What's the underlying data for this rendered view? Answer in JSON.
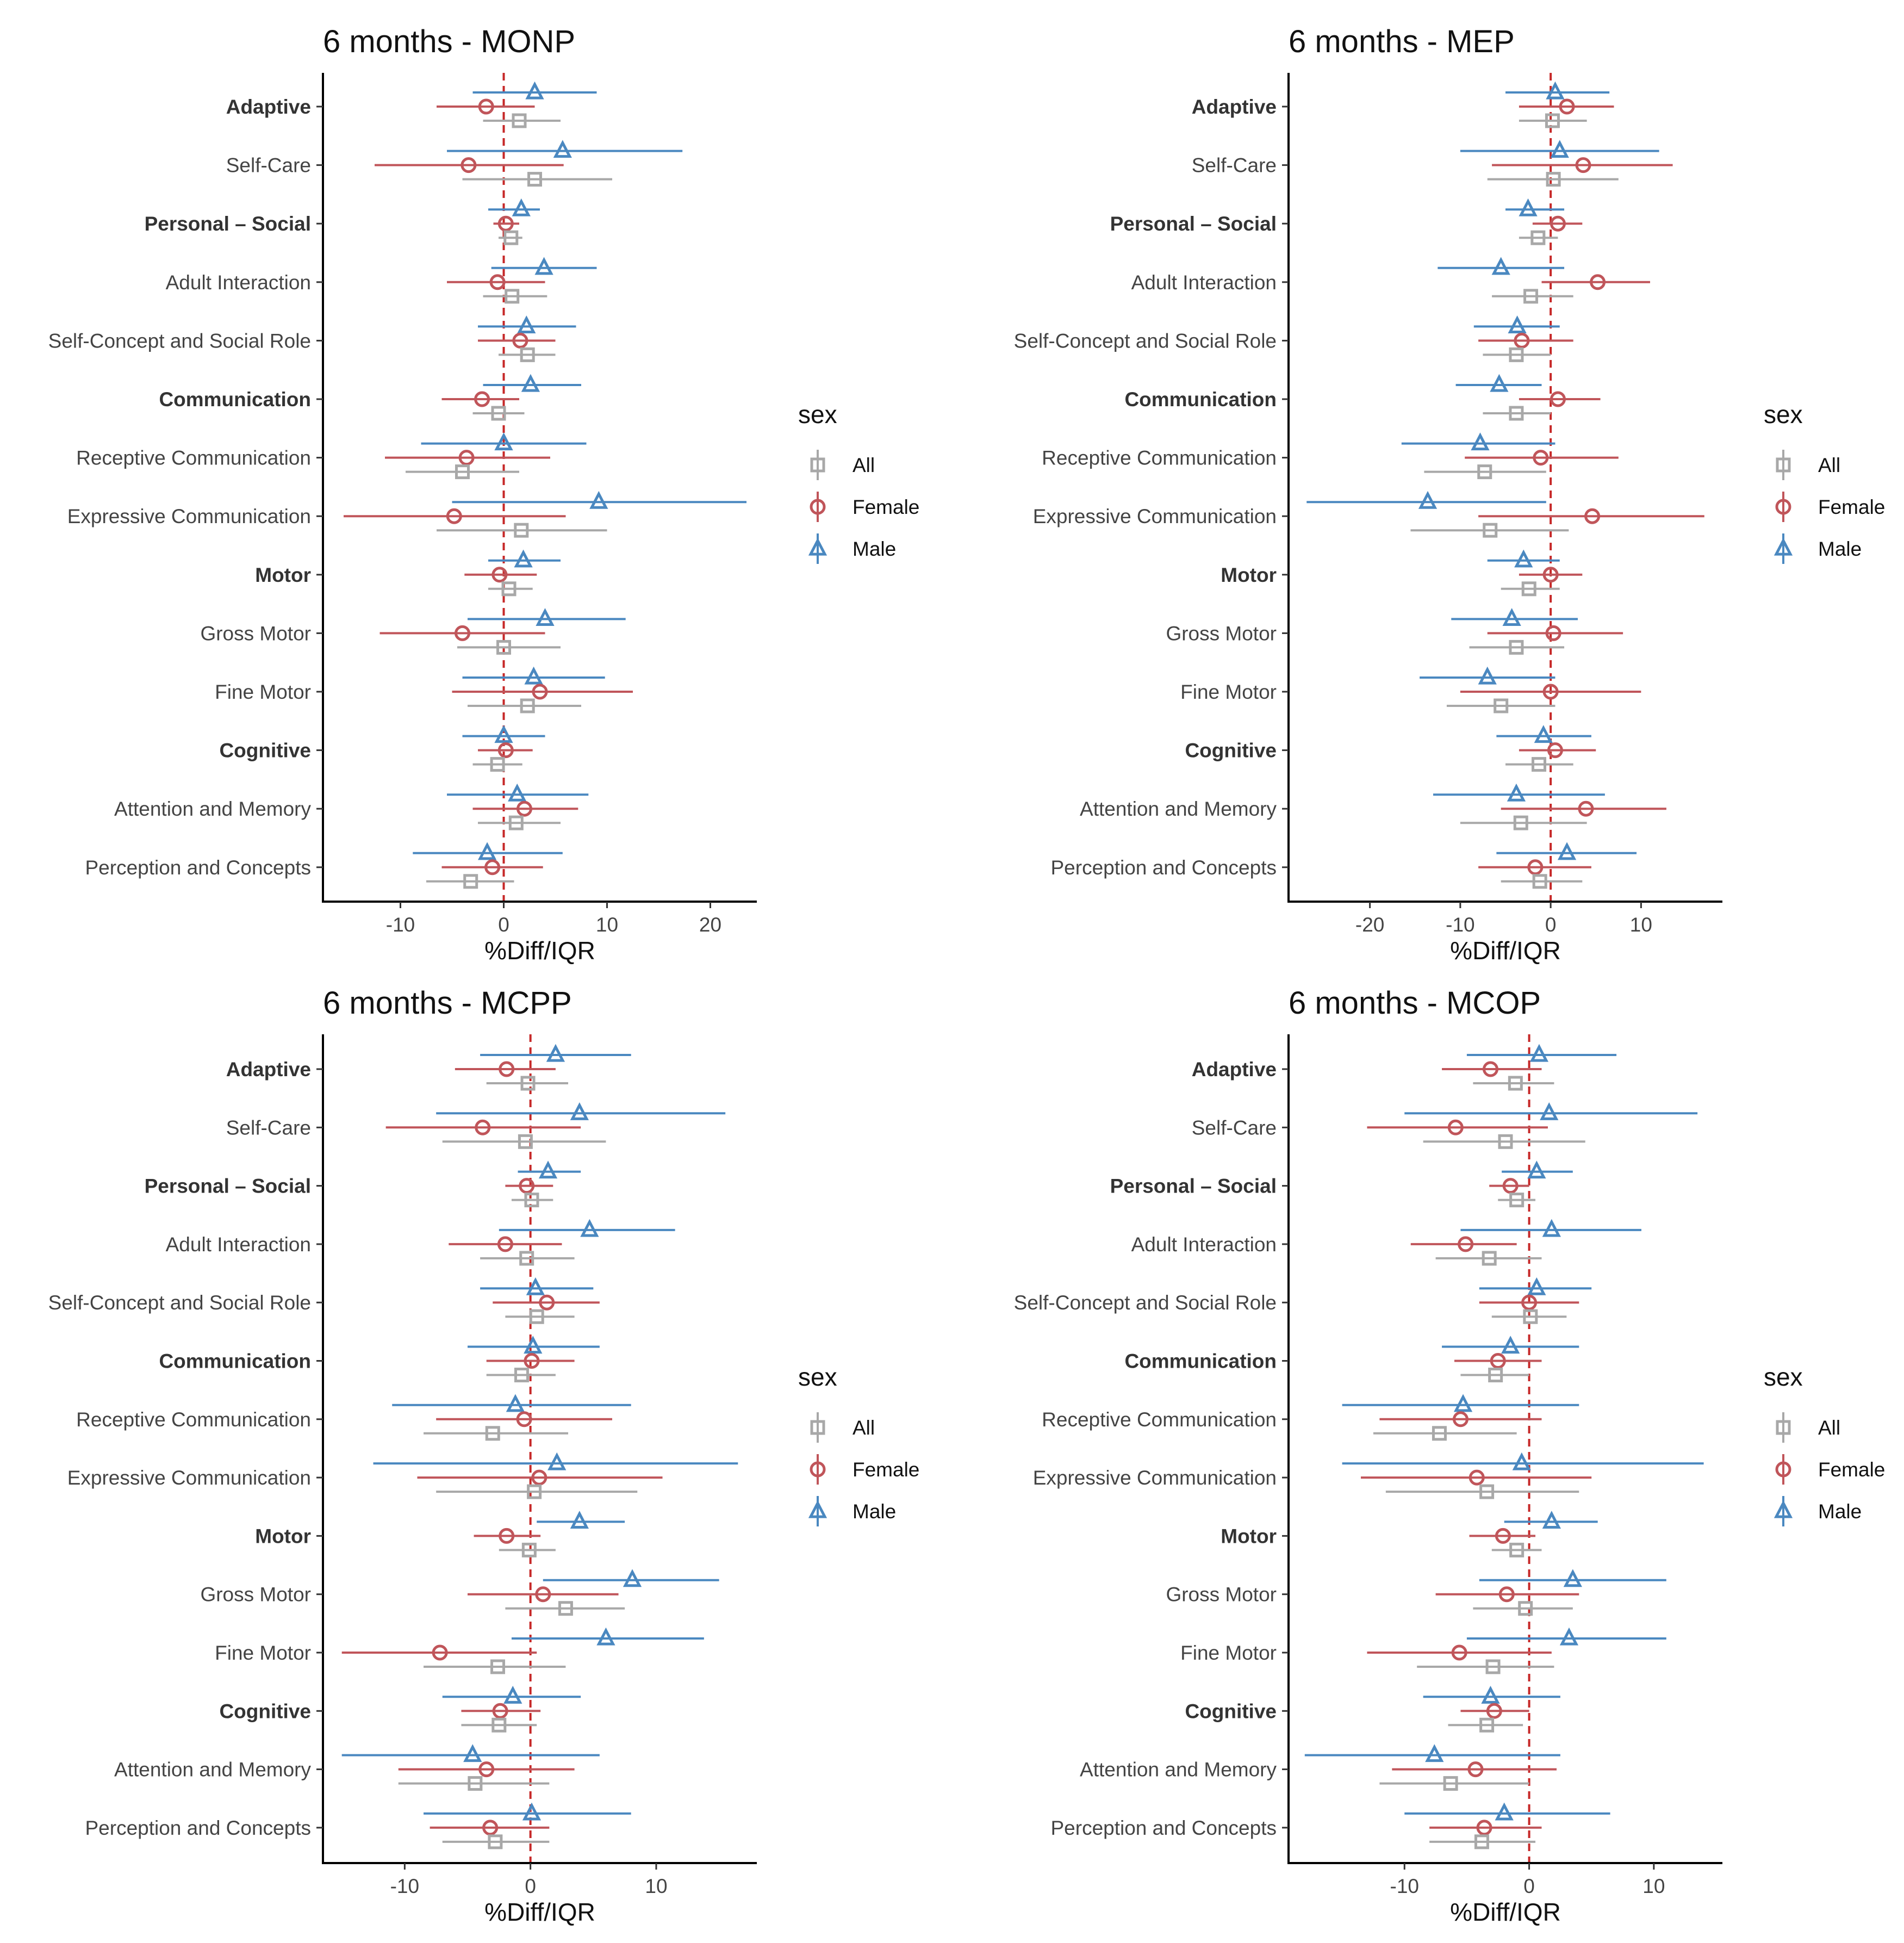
{
  "chart_data": [
    {
      "type": "forest",
      "title": "6 months - MONP",
      "xlabel": "%Diff/IQR",
      "xlim": [
        -17.5,
        24.5
      ],
      "xticks": [
        -10,
        0,
        10,
        20
      ],
      "xtick_labels": [
        "-10",
        "0",
        "10",
        "20"
      ],
      "reference_line": 0,
      "categories": [
        {
          "label": "Adaptive",
          "bold": true
        },
        {
          "label": "Self-Care",
          "bold": false
        },
        {
          "label": "Personal – Social",
          "bold": true
        },
        {
          "label": "Adult Interaction",
          "bold": false
        },
        {
          "label": "Self-Concept and Social Role",
          "bold": false
        },
        {
          "label": "Communication",
          "bold": true
        },
        {
          "label": "Receptive Communication",
          "bold": false
        },
        {
          "label": "Expressive Communication",
          "bold": false
        },
        {
          "label": "Motor",
          "bold": true
        },
        {
          "label": "Gross Motor",
          "bold": false
        },
        {
          "label": "Fine Motor",
          "bold": false
        },
        {
          "label": "Cognitive",
          "bold": true
        },
        {
          "label": "Attention and Memory",
          "bold": false
        },
        {
          "label": "Perception and Concepts",
          "bold": false
        }
      ],
      "series": [
        {
          "name": "Male",
          "est": [
            3.0,
            5.7,
            1.7,
            3.9,
            2.2,
            2.6,
            0.0,
            9.2,
            1.9,
            4.0,
            2.9,
            0.0,
            1.3,
            -1.6
          ],
          "lo": [
            -3.0,
            -5.5,
            -1.5,
            -1.2,
            -2.5,
            -2.0,
            -8.0,
            -5.0,
            -1.5,
            -3.5,
            -4.0,
            -4.0,
            -5.5,
            -8.8
          ],
          "hi": [
            9.0,
            17.3,
            3.5,
            9.0,
            7.0,
            7.5,
            8.0,
            23.5,
            5.5,
            11.8,
            9.8,
            4.0,
            8.2,
            5.7
          ]
        },
        {
          "name": "Female",
          "est": [
            -1.7,
            -3.4,
            0.2,
            -0.6,
            1.6,
            -2.1,
            -3.6,
            -4.8,
            -0.4,
            -4.0,
            3.5,
            0.2,
            2.0,
            -1.1
          ],
          "lo": [
            -6.5,
            -12.5,
            -1.0,
            -5.5,
            -2.5,
            -6.0,
            -11.5,
            -15.5,
            -3.8,
            -12.0,
            -5.0,
            -2.5,
            -3.0,
            -6.0
          ],
          "hi": [
            3.0,
            5.8,
            1.5,
            4.0,
            5.0,
            1.5,
            4.5,
            6.0,
            3.2,
            4.0,
            12.5,
            2.8,
            7.2,
            3.8
          ]
        },
        {
          "name": "All",
          "est": [
            1.5,
            3.0,
            0.7,
            0.8,
            2.3,
            -0.5,
            -4.0,
            1.7,
            0.5,
            0.0,
            2.3,
            -0.6,
            1.2,
            -3.2
          ],
          "lo": [
            -2.0,
            -4.0,
            -0.5,
            -2.0,
            -0.5,
            -3.0,
            -9.5,
            -6.5,
            -1.5,
            -4.5,
            -3.5,
            -3.0,
            -2.5,
            -7.5
          ],
          "hi": [
            5.5,
            10.5,
            1.8,
            4.2,
            5.0,
            2.0,
            1.5,
            10.0,
            2.8,
            5.5,
            7.5,
            1.8,
            5.5,
            1.0
          ]
        }
      ]
    },
    {
      "type": "forest",
      "title": "6 months - MEP",
      "xlabel": "%Diff/IQR",
      "xlim": [
        -29,
        19
      ],
      "xticks": [
        -20,
        -10,
        0,
        10
      ],
      "xtick_labels": [
        "-20",
        "-10",
        "0",
        "10"
      ],
      "reference_line": 0,
      "categories": [
        {
          "label": "Adaptive",
          "bold": true
        },
        {
          "label": "Self-Care",
          "bold": false
        },
        {
          "label": "Personal – Social",
          "bold": true
        },
        {
          "label": "Adult Interaction",
          "bold": false
        },
        {
          "label": "Self-Concept and Social Role",
          "bold": false
        },
        {
          "label": "Communication",
          "bold": true
        },
        {
          "label": "Receptive Communication",
          "bold": false
        },
        {
          "label": "Expressive Communication",
          "bold": false
        },
        {
          "label": "Motor",
          "bold": true
        },
        {
          "label": "Gross Motor",
          "bold": false
        },
        {
          "label": "Fine Motor",
          "bold": false
        },
        {
          "label": "Cognitive",
          "bold": true
        },
        {
          "label": "Attention and Memory",
          "bold": false
        },
        {
          "label": "Perception and Concepts",
          "bold": false
        }
      ],
      "series": [
        {
          "name": "Male",
          "est": [
            0.5,
            1.0,
            -2.5,
            -5.5,
            -3.7,
            -5.7,
            -7.8,
            -13.6,
            -3.0,
            -4.3,
            -7.0,
            -0.8,
            -3.8,
            1.8
          ],
          "lo": [
            -5.0,
            -10.0,
            -5.0,
            -12.5,
            -8.5,
            -10.5,
            -16.5,
            -27.0,
            -7.0,
            -11.0,
            -14.5,
            -6.0,
            -13.0,
            -6.0
          ],
          "hi": [
            6.5,
            12.0,
            1.5,
            1.5,
            1.0,
            -1.0,
            0.5,
            -0.5,
            1.0,
            3.0,
            0.5,
            4.5,
            6.0,
            9.5
          ]
        },
        {
          "name": "Female",
          "est": [
            1.8,
            3.6,
            0.8,
            5.2,
            -3.2,
            0.8,
            -1.1,
            4.6,
            0.0,
            0.3,
            0.0,
            0.5,
            3.9,
            -1.7
          ],
          "lo": [
            -3.5,
            -6.5,
            -2.0,
            -1.0,
            -8.0,
            -3.5,
            -9.5,
            -8.0,
            -3.5,
            -7.0,
            -10.0,
            -3.5,
            -5.5,
            -8.0
          ],
          "hi": [
            7.0,
            13.5,
            3.5,
            11.0,
            2.5,
            5.5,
            7.5,
            17.0,
            3.5,
            8.0,
            10.0,
            5.0,
            12.8,
            4.5
          ]
        },
        {
          "name": "All",
          "est": [
            0.2,
            0.3,
            -1.4,
            -2.2,
            -3.8,
            -3.8,
            -7.3,
            -6.7,
            -2.4,
            -3.8,
            -5.5,
            -1.3,
            -3.3,
            -1.2
          ],
          "lo": [
            -3.5,
            -7.0,
            -3.5,
            -6.5,
            -7.5,
            -7.5,
            -14.0,
            -15.5,
            -5.5,
            -9.0,
            -11.5,
            -5.0,
            -10.0,
            -5.5
          ],
          "hi": [
            4.0,
            7.5,
            0.8,
            2.5,
            0.0,
            0.0,
            -0.5,
            2.0,
            1.0,
            1.5,
            0.5,
            2.5,
            4.0,
            3.5
          ]
        }
      ]
    },
    {
      "type": "forest",
      "title": "6 months - MCPP",
      "xlabel": "%Diff/IQR",
      "xlim": [
        -16.5,
        18
      ],
      "xticks": [
        -10,
        0,
        10
      ],
      "xtick_labels": [
        "-10",
        "0",
        "10"
      ],
      "reference_line": 0,
      "categories": [
        {
          "label": "Adaptive",
          "bold": true
        },
        {
          "label": "Self-Care",
          "bold": false
        },
        {
          "label": "Personal – Social",
          "bold": true
        },
        {
          "label": "Adult Interaction",
          "bold": false
        },
        {
          "label": "Self-Concept and Social Role",
          "bold": false
        },
        {
          "label": "Communication",
          "bold": true
        },
        {
          "label": "Receptive Communication",
          "bold": false
        },
        {
          "label": "Expressive Communication",
          "bold": false
        },
        {
          "label": "Motor",
          "bold": true
        },
        {
          "label": "Gross Motor",
          "bold": false
        },
        {
          "label": "Fine Motor",
          "bold": false
        },
        {
          "label": "Cognitive",
          "bold": true
        },
        {
          "label": "Attention and Memory",
          "bold": false
        },
        {
          "label": "Perception and Concepts",
          "bold": false
        }
      ],
      "series": [
        {
          "name": "Male",
          "est": [
            2.0,
            3.9,
            1.4,
            4.7,
            0.4,
            0.2,
            -1.2,
            2.1,
            3.9,
            8.1,
            6.0,
            -1.4,
            -4.6,
            0.1
          ],
          "lo": [
            -4.0,
            -7.5,
            -1.0,
            -2.5,
            -4.0,
            -5.0,
            -11.0,
            -12.5,
            0.5,
            1.0,
            -1.5,
            -7.0,
            -15.0,
            -8.5
          ],
          "hi": [
            8.0,
            15.5,
            4.0,
            11.5,
            5.0,
            5.5,
            8.0,
            16.5,
            7.5,
            15.0,
            13.8,
            4.0,
            5.5,
            8.0
          ]
        },
        {
          "name": "Female",
          "est": [
            -1.9,
            -3.8,
            -0.3,
            -2.0,
            1.3,
            0.1,
            -0.5,
            0.7,
            -1.9,
            1.0,
            -7.2,
            -2.4,
            -3.5,
            -3.2
          ],
          "lo": [
            -6.0,
            -11.5,
            -2.0,
            -6.5,
            -3.0,
            -3.5,
            -7.5,
            -9.0,
            -4.5,
            -5.0,
            -15.0,
            -5.5,
            -10.5,
            -8.0
          ],
          "hi": [
            2.0,
            4.0,
            1.8,
            2.5,
            5.5,
            3.5,
            6.5,
            10.5,
            0.8,
            7.0,
            0.5,
            0.8,
            3.5,
            1.5
          ]
        },
        {
          "name": "All",
          "est": [
            -0.2,
            -0.4,
            0.1,
            -0.3,
            0.5,
            -0.7,
            -3.0,
            0.3,
            -0.1,
            2.8,
            -2.6,
            -2.5,
            -4.4,
            -2.8
          ],
          "lo": [
            -3.5,
            -7.0,
            -1.5,
            -4.0,
            -2.0,
            -3.5,
            -8.5,
            -7.5,
            -2.5,
            -2.0,
            -8.5,
            -5.5,
            -10.5,
            -7.0
          ],
          "hi": [
            3.0,
            6.0,
            1.8,
            3.5,
            3.5,
            2.0,
            3.0,
            8.5,
            2.0,
            7.5,
            2.8,
            0.5,
            1.5,
            1.5
          ]
        }
      ]
    },
    {
      "type": "forest",
      "title": "6 months - MCOP",
      "xlabel": "%Diff/IQR",
      "xlim": [
        -19.3,
        15.5
      ],
      "xticks": [
        -10,
        0,
        10
      ],
      "xtick_labels": [
        "-10",
        "0",
        "10"
      ],
      "reference_line": 0,
      "categories": [
        {
          "label": "Adaptive",
          "bold": true
        },
        {
          "label": "Self-Care",
          "bold": false
        },
        {
          "label": "Personal – Social",
          "bold": true
        },
        {
          "label": "Adult Interaction",
          "bold": false
        },
        {
          "label": "Self-Concept and Social Role",
          "bold": false
        },
        {
          "label": "Communication",
          "bold": true
        },
        {
          "label": "Receptive Communication",
          "bold": false
        },
        {
          "label": "Expressive Communication",
          "bold": false
        },
        {
          "label": "Motor",
          "bold": true
        },
        {
          "label": "Gross Motor",
          "bold": false
        },
        {
          "label": "Fine Motor",
          "bold": false
        },
        {
          "label": "Cognitive",
          "bold": true
        },
        {
          "label": "Attention and Memory",
          "bold": false
        },
        {
          "label": "Perception and Concepts",
          "bold": false
        }
      ],
      "series": [
        {
          "name": "Male",
          "est": [
            0.8,
            1.6,
            0.6,
            1.8,
            0.6,
            -1.5,
            -5.3,
            -0.6,
            1.8,
            3.5,
            3.2,
            -3.1,
            -7.6,
            -2.0
          ],
          "lo": [
            -5.0,
            -10.0,
            -2.2,
            -5.5,
            -4.0,
            -7.0,
            -15.0,
            -15.0,
            -2.0,
            -4.0,
            -5.0,
            -8.5,
            -18.0,
            -10.0
          ],
          "hi": [
            7.0,
            13.5,
            3.5,
            9.0,
            5.0,
            4.0,
            4.0,
            14.0,
            5.5,
            11.0,
            11.0,
            2.5,
            2.5,
            6.5
          ]
        },
        {
          "name": "Female",
          "est": [
            -3.1,
            -5.9,
            -1.5,
            -5.1,
            0.0,
            -2.5,
            -5.5,
            -4.2,
            -2.1,
            -1.8,
            -5.6,
            -2.8,
            -4.3,
            -3.6
          ],
          "lo": [
            -7.0,
            -13.0,
            -3.2,
            -9.5,
            -4.0,
            -6.0,
            -12.0,
            -13.5,
            -4.8,
            -7.5,
            -13.0,
            -5.5,
            -11.0,
            -8.0
          ],
          "hi": [
            1.0,
            1.5,
            0.0,
            -1.0,
            4.0,
            1.0,
            1.0,
            5.0,
            0.5,
            4.0,
            1.8,
            0.0,
            2.2,
            1.0
          ]
        },
        {
          "name": "All",
          "est": [
            -1.1,
            -1.9,
            -1.0,
            -3.2,
            0.1,
            -2.7,
            -7.2,
            -3.4,
            -1.0,
            -0.3,
            -2.9,
            -3.4,
            -6.3,
            -3.8
          ],
          "lo": [
            -4.5,
            -8.5,
            -2.5,
            -7.5,
            -3.0,
            -5.5,
            -12.5,
            -11.5,
            -3.0,
            -4.5,
            -9.0,
            -6.5,
            -12.0,
            -8.0
          ],
          "hi": [
            2.0,
            4.5,
            0.5,
            1.0,
            3.0,
            0.0,
            -1.0,
            4.0,
            1.0,
            3.5,
            2.0,
            -0.5,
            0.0,
            0.5
          ]
        }
      ]
    }
  ],
  "legend": {
    "title": "sex",
    "items": [
      {
        "name": "All",
        "shape": "square"
      },
      {
        "name": "Female",
        "shape": "circle"
      },
      {
        "name": "Male",
        "shape": "triangle"
      }
    ]
  },
  "colors": {
    "All": "#a8a8a8",
    "Female": "#c0555a",
    "Male": "#4a88c0",
    "reference": "#c62828",
    "axis": "#000000"
  }
}
